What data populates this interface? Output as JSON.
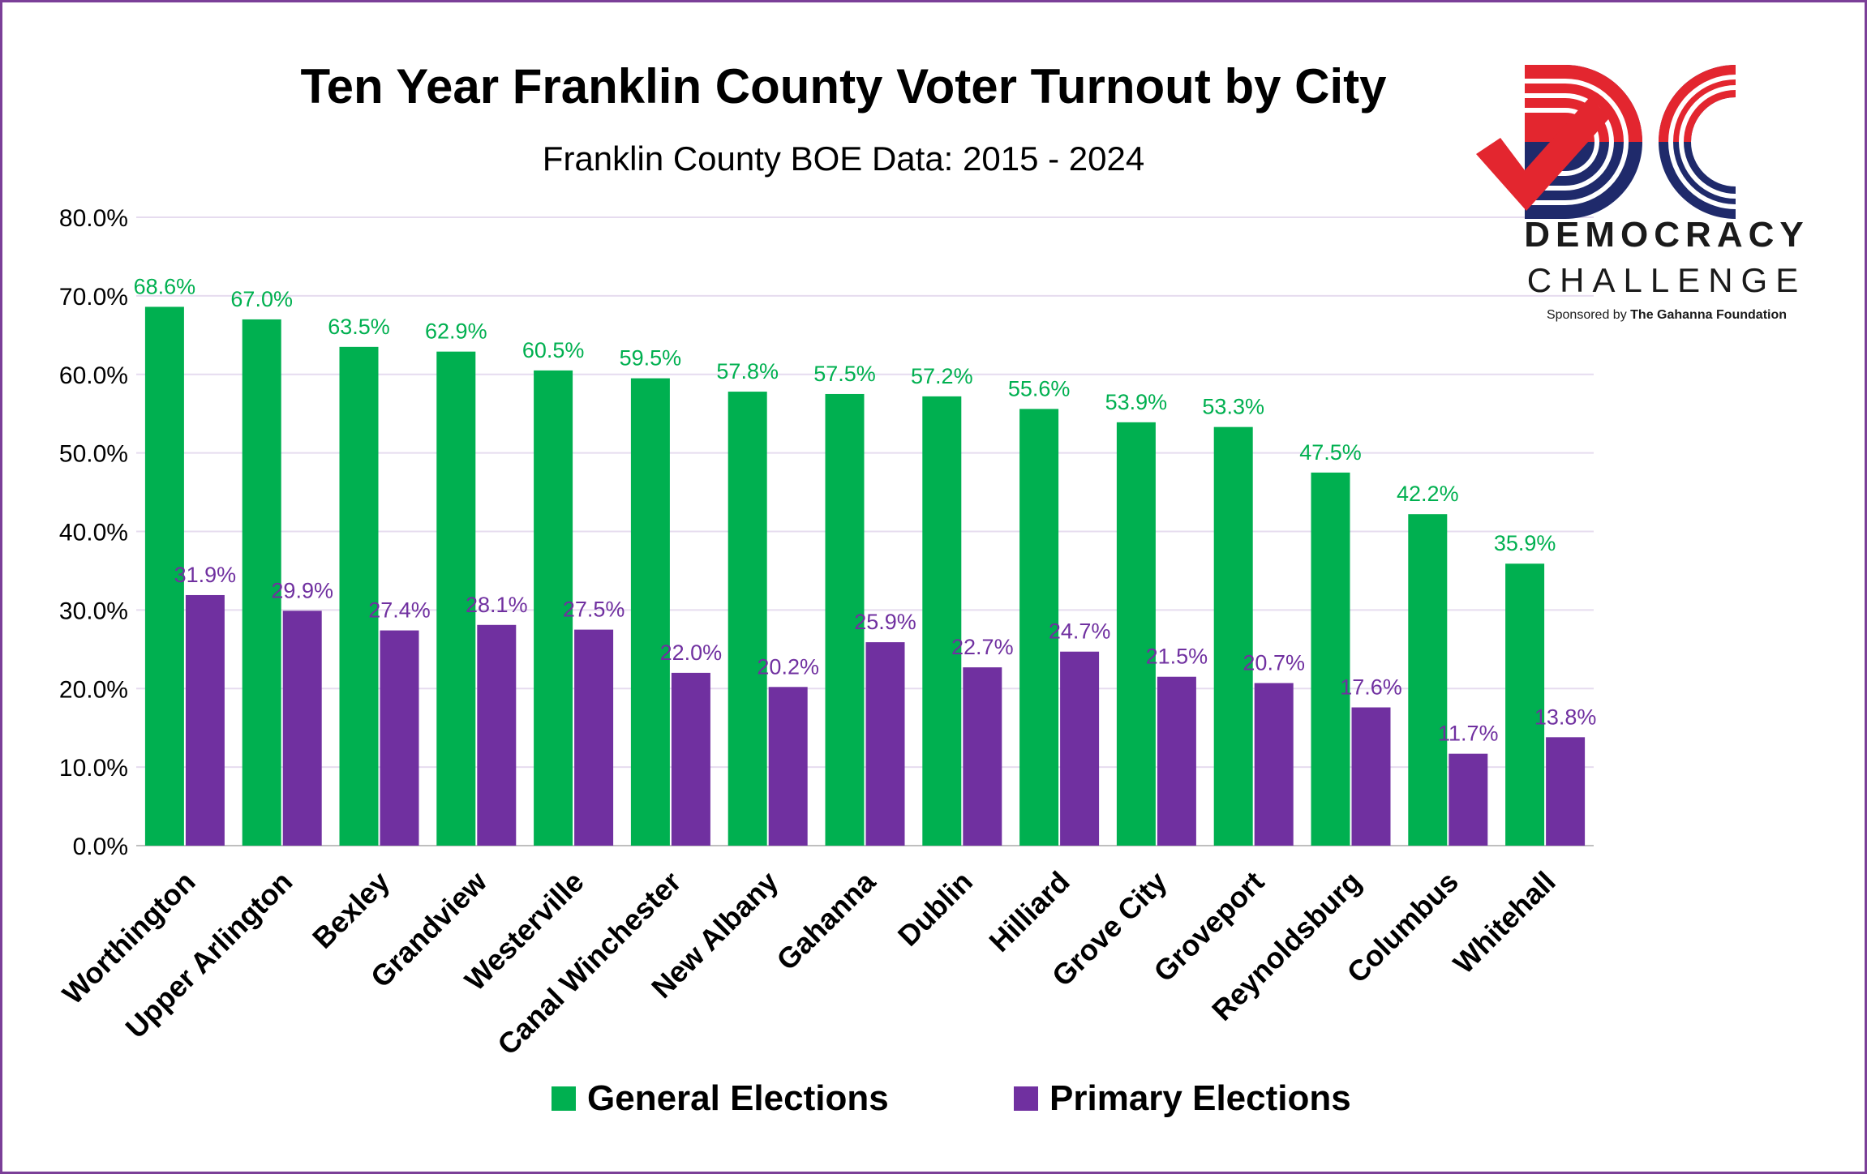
{
  "chart_data": {
    "type": "bar",
    "title": "Ten Year Franklin County Voter Turnout by City",
    "subtitle": "Franklin County BOE Data:  2015 - 2024",
    "xlabel": "",
    "ylabel": "",
    "ylim": [
      0,
      80
    ],
    "yticks": [
      "0.0%",
      "10.0%",
      "20.0%",
      "30.0%",
      "40.0%",
      "50.0%",
      "60.0%",
      "70.0%",
      "80.0%"
    ],
    "grid": true,
    "legend_position": "bottom",
    "categories": [
      "Worthington",
      "Upper Arlington",
      "Bexley",
      "Grandview",
      "Westerville",
      "Canal Winchester",
      "New Albany",
      "Gahanna",
      "Dublin",
      "Hilliard",
      "Grove City",
      "Groveport",
      "Reynoldsburg",
      "Columbus",
      "Whitehall"
    ],
    "series": [
      {
        "name": "General Elections",
        "color": "#00b050",
        "values": [
          68.6,
          67.0,
          63.5,
          62.9,
          60.5,
          59.5,
          57.8,
          57.5,
          57.2,
          55.6,
          53.9,
          53.3,
          47.5,
          42.2,
          35.9
        ],
        "labels": [
          "68.6%",
          "67.0%",
          "63.5%",
          "62.9%",
          "60.5%",
          "59.5%",
          "57.8%",
          "57.5%",
          "57.2%",
          "55.6%",
          "53.9%",
          "53.3%",
          "47.5%",
          "42.2%",
          "35.9%"
        ]
      },
      {
        "name": "Primary Elections",
        "color": "#7030a0",
        "values": [
          31.9,
          29.9,
          27.4,
          28.1,
          27.5,
          22.0,
          20.2,
          25.9,
          22.7,
          24.7,
          21.5,
          20.7,
          17.6,
          11.7,
          13.8
        ],
        "labels": [
          "31.9%",
          "29.9%",
          "27.4%",
          "28.1%",
          "27.5%",
          "22.0%",
          "20.2%",
          "25.9%",
          "22.7%",
          "24.7%",
          "21.5%",
          "20.7%",
          "17.6%",
          "11.7%",
          "13.8%"
        ]
      }
    ]
  },
  "logo": {
    "name": "DC Democracy Challenge logo",
    "word1": "DEMOCRACY",
    "word2": "CHALLENGE",
    "sponsor_prefix": "Sponsored by",
    "sponsor_name": "The Gahanna Foundation",
    "colors": {
      "red": "#e3262f",
      "navy": "#1f2a6b"
    }
  }
}
